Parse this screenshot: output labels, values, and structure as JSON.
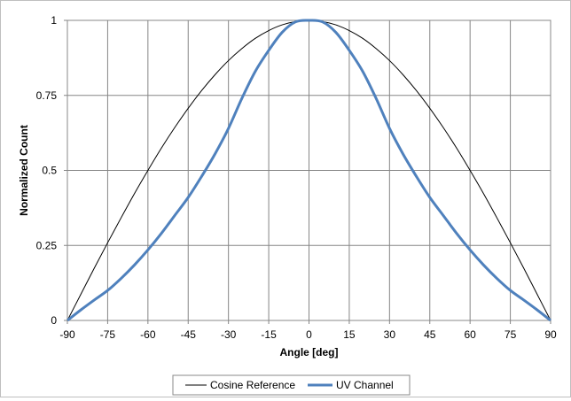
{
  "chart_data": {
    "type": "line",
    "xlabel": "Angle [deg]",
    "ylabel": "Normalized Count",
    "xlim": [
      -90,
      90
    ],
    "ylim": [
      0,
      1
    ],
    "x_ticks": [
      "-90",
      "-75",
      "-60",
      "-45",
      "-30",
      "-15",
      "0",
      "15",
      "30",
      "45",
      "60",
      "75",
      "90"
    ],
    "y_ticks": [
      "0",
      "0.25",
      "0.5",
      "0.75",
      "1"
    ],
    "grid": true,
    "legend_position": "bottom",
    "series": [
      {
        "name": "Cosine Reference",
        "color": "#000000",
        "x": [
          -90,
          -85,
          -80,
          -75,
          -70,
          -65,
          -60,
          -55,
          -50,
          -45,
          -40,
          -35,
          -30,
          -25,
          -20,
          -15,
          -10,
          -5,
          0,
          5,
          10,
          15,
          20,
          25,
          30,
          35,
          40,
          45,
          50,
          55,
          60,
          65,
          70,
          75,
          80,
          85,
          90
        ],
        "y": [
          0,
          0.087,
          0.174,
          0.259,
          0.342,
          0.423,
          0.5,
          0.574,
          0.643,
          0.707,
          0.766,
          0.819,
          0.866,
          0.906,
          0.94,
          0.966,
          0.985,
          0.996,
          1,
          0.996,
          0.985,
          0.966,
          0.94,
          0.906,
          0.866,
          0.819,
          0.766,
          0.707,
          0.643,
          0.574,
          0.5,
          0.423,
          0.342,
          0.259,
          0.174,
          0.087,
          0
        ]
      },
      {
        "name": "UV Channel",
        "color": "#4f81bd",
        "x": [
          -90,
          -85,
          -80,
          -75,
          -70,
          -65,
          -60,
          -55,
          -50,
          -45,
          -40,
          -35,
          -30,
          -25,
          -20,
          -15,
          -10,
          -5,
          0,
          5,
          10,
          15,
          20,
          25,
          30,
          35,
          40,
          45,
          50,
          55,
          60,
          65,
          70,
          75,
          80,
          85,
          90
        ],
        "y": [
          0,
          0.035,
          0.068,
          0.1,
          0.14,
          0.185,
          0.235,
          0.29,
          0.35,
          0.41,
          0.48,
          0.555,
          0.64,
          0.74,
          0.83,
          0.9,
          0.96,
          0.995,
          1,
          0.995,
          0.96,
          0.9,
          0.83,
          0.74,
          0.64,
          0.555,
          0.48,
          0.41,
          0.35,
          0.29,
          0.235,
          0.185,
          0.14,
          0.1,
          0.068,
          0.035,
          0
        ]
      }
    ]
  }
}
